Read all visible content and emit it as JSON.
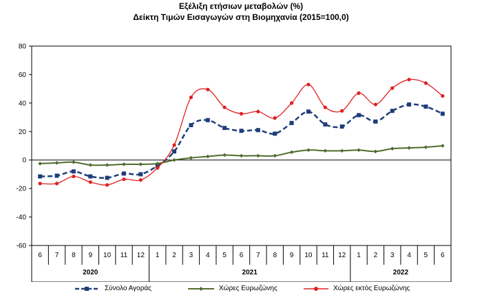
{
  "chart_data": {
    "type": "line",
    "title": "Εξέλιξη ετήσιων μεταβολών (%)",
    "subtitle": "Δείκτη Τιμών Εισαγωγών στη Βιομηχανία (2015=100,0)",
    "categories": [
      "6",
      "7",
      "8",
      "9",
      "10",
      "11",
      "12",
      "1",
      "2",
      "3",
      "4",
      "5",
      "6",
      "7",
      "8",
      "9",
      "10",
      "11",
      "12",
      "1",
      "2",
      "3",
      "4",
      "5",
      "6"
    ],
    "year_groups": [
      {
        "label": "2020",
        "start": 0,
        "end": 6
      },
      {
        "label": "2021",
        "start": 7,
        "end": 18
      },
      {
        "label": "2022",
        "start": 19,
        "end": 24
      }
    ],
    "ylim": [
      -60,
      80
    ],
    "yticks": [
      -60,
      -40,
      -20,
      0,
      20,
      40,
      60,
      80
    ],
    "grid": false,
    "legend_position": "bottom",
    "series": [
      {
        "name": "Σύνολο Αγοράς",
        "color": "#1f3d7a",
        "style": "dashed",
        "marker": "square",
        "values": [
          -11.5,
          -11,
          -8,
          -11.5,
          -12.5,
          -9.5,
          -10,
          -4,
          6,
          24.5,
          28,
          22.5,
          20.5,
          21,
          18.5,
          26,
          34,
          25,
          23.5,
          31.5,
          27,
          34.5,
          39,
          37.5,
          32.5
        ]
      },
      {
        "name": "Χώρες Ευρωζώνης",
        "color": "#4f6b2a",
        "style": "solid",
        "marker": "diamond",
        "values": [
          -2.5,
          -2,
          -1.5,
          -3.5,
          -3.5,
          -3,
          -3,
          -2.5,
          0,
          1.5,
          2.5,
          3.5,
          3,
          3,
          3,
          5.5,
          7,
          6.5,
          6.5,
          7,
          6,
          8,
          8.5,
          9,
          10
        ]
      },
      {
        "name": "Χώρες εκτός Ευρωζώνης",
        "color": "#e02020",
        "style": "solid",
        "marker": "circle",
        "values": [
          -16.5,
          -16.5,
          -11.5,
          -15.5,
          -17.5,
          -13.5,
          -14,
          -5.5,
          10.5,
          44,
          49.5,
          37,
          32.5,
          34,
          29.5,
          40,
          53,
          37,
          34.5,
          47,
          39,
          50.5,
          56.5,
          54,
          45
        ]
      }
    ]
  }
}
